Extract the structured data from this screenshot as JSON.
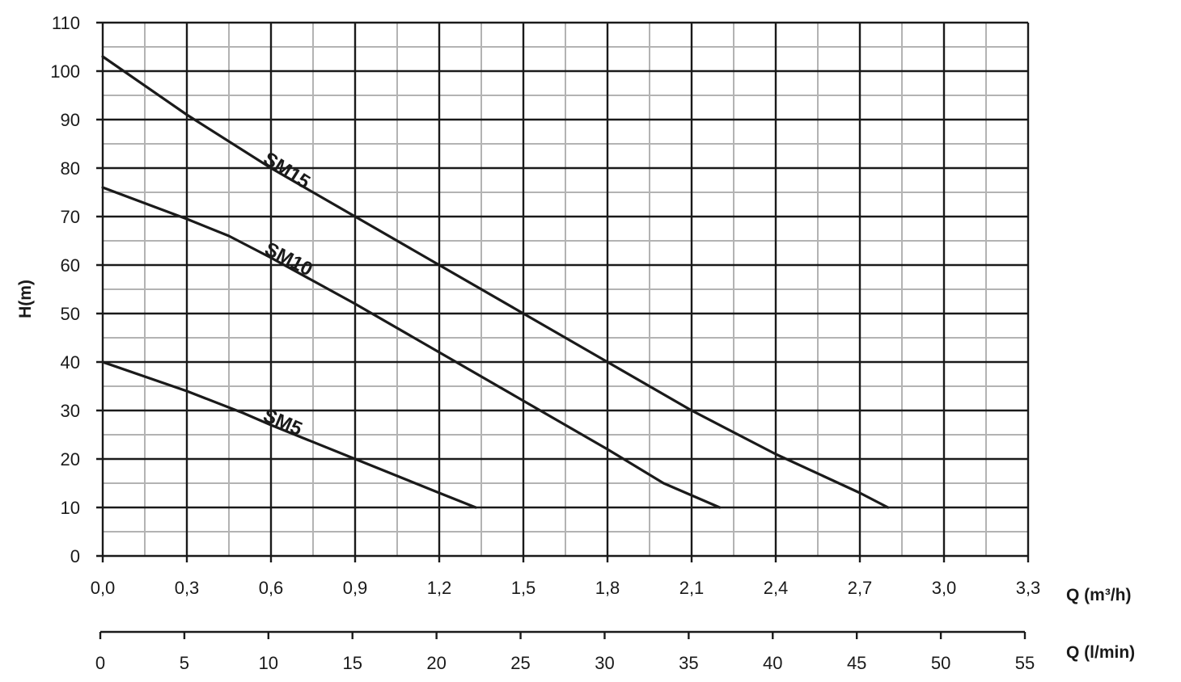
{
  "chart_data": {
    "type": "line",
    "title": "",
    "ylabel": "H(m)",
    "xlabel": "Q (m³/h)",
    "x2label": "Q (l/min)",
    "ylim": [
      0,
      110
    ],
    "xlim": [
      0,
      3.3
    ],
    "x2lim": [
      0,
      55
    ],
    "y_ticks": [
      "0",
      "10",
      "20",
      "30",
      "40",
      "50",
      "60",
      "70",
      "80",
      "90",
      "100",
      "110"
    ],
    "x_ticks": [
      "0,0",
      "0,3",
      "0,6",
      "0,9",
      "1,2",
      "1,5",
      "1,8",
      "2,1",
      "2,4",
      "2,7",
      "3,0",
      "3,3"
    ],
    "x2_ticks": [
      "0",
      "5",
      "10",
      "15",
      "20",
      "25",
      "30",
      "35",
      "40",
      "45",
      "50",
      "55"
    ],
    "grid": true,
    "series": [
      {
        "name": "SM15",
        "x": [
          0.0,
          0.3,
          0.6,
          0.9,
          1.2,
          1.5,
          1.8,
          2.1,
          2.4,
          2.7,
          2.8
        ],
        "y": [
          103,
          91,
          80,
          70,
          60,
          50,
          40,
          30,
          21,
          13,
          10
        ]
      },
      {
        "name": "SM10",
        "x": [
          0.0,
          0.3,
          0.45,
          0.6,
          0.9,
          1.2,
          1.5,
          1.8,
          2.0,
          2.2
        ],
        "y": [
          76,
          69.5,
          66,
          61.5,
          52,
          42,
          32,
          22,
          15,
          10
        ]
      },
      {
        "name": "SM5",
        "x": [
          0.0,
          0.3,
          0.5,
          0.6,
          0.9,
          1.2,
          1.33
        ],
        "y": [
          40,
          34,
          29.5,
          27,
          20,
          13,
          10
        ]
      }
    ],
    "colors": {
      "line": "#1a1a1a",
      "grid_major": "#1a1a1a",
      "grid_minor": "#b3b3b3"
    }
  }
}
